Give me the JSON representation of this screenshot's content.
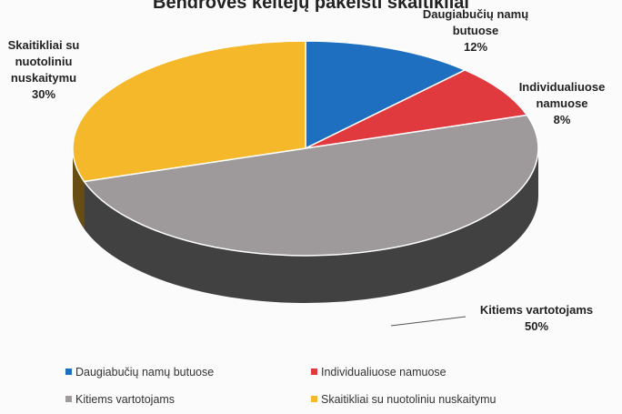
{
  "chart_data": {
    "type": "pie",
    "style": "3d",
    "title": "Bendrovės keitėjų pakeisti skaitikliai",
    "slices": [
      {
        "name": "Daugiabučių namų butuose",
        "label_lines": [
          "Daugiabučių namų",
          "butuose",
          "12%"
        ],
        "value": 12,
        "color": "#1f6fc0"
      },
      {
        "name": "Individualiuose namuose",
        "label_lines": [
          "Individualiuose",
          "namuose",
          "8%"
        ],
        "value": 8,
        "color": "#e03a3e"
      },
      {
        "name": "Kitiems vartotojams",
        "label_lines": [
          "Kitiems vartotojams",
          "50%"
        ],
        "value": 50,
        "color": "#9e9a9c"
      },
      {
        "name": "Skaitikliai su nuotoliniu nuskaitymu",
        "label_lines": [
          "Skaitikliai su",
          "nuotoliniu",
          "nuskaitymu",
          "30%"
        ],
        "value": 30,
        "color": "#f5b82a"
      }
    ],
    "legend": {
      "position": "bottom",
      "items": [
        "Daugiabučių namų butuose",
        "Individualiuose namuose",
        "Kitiems vartotojams",
        "Skaitikliai su nuotoliniu nuskaitymu"
      ]
    }
  }
}
